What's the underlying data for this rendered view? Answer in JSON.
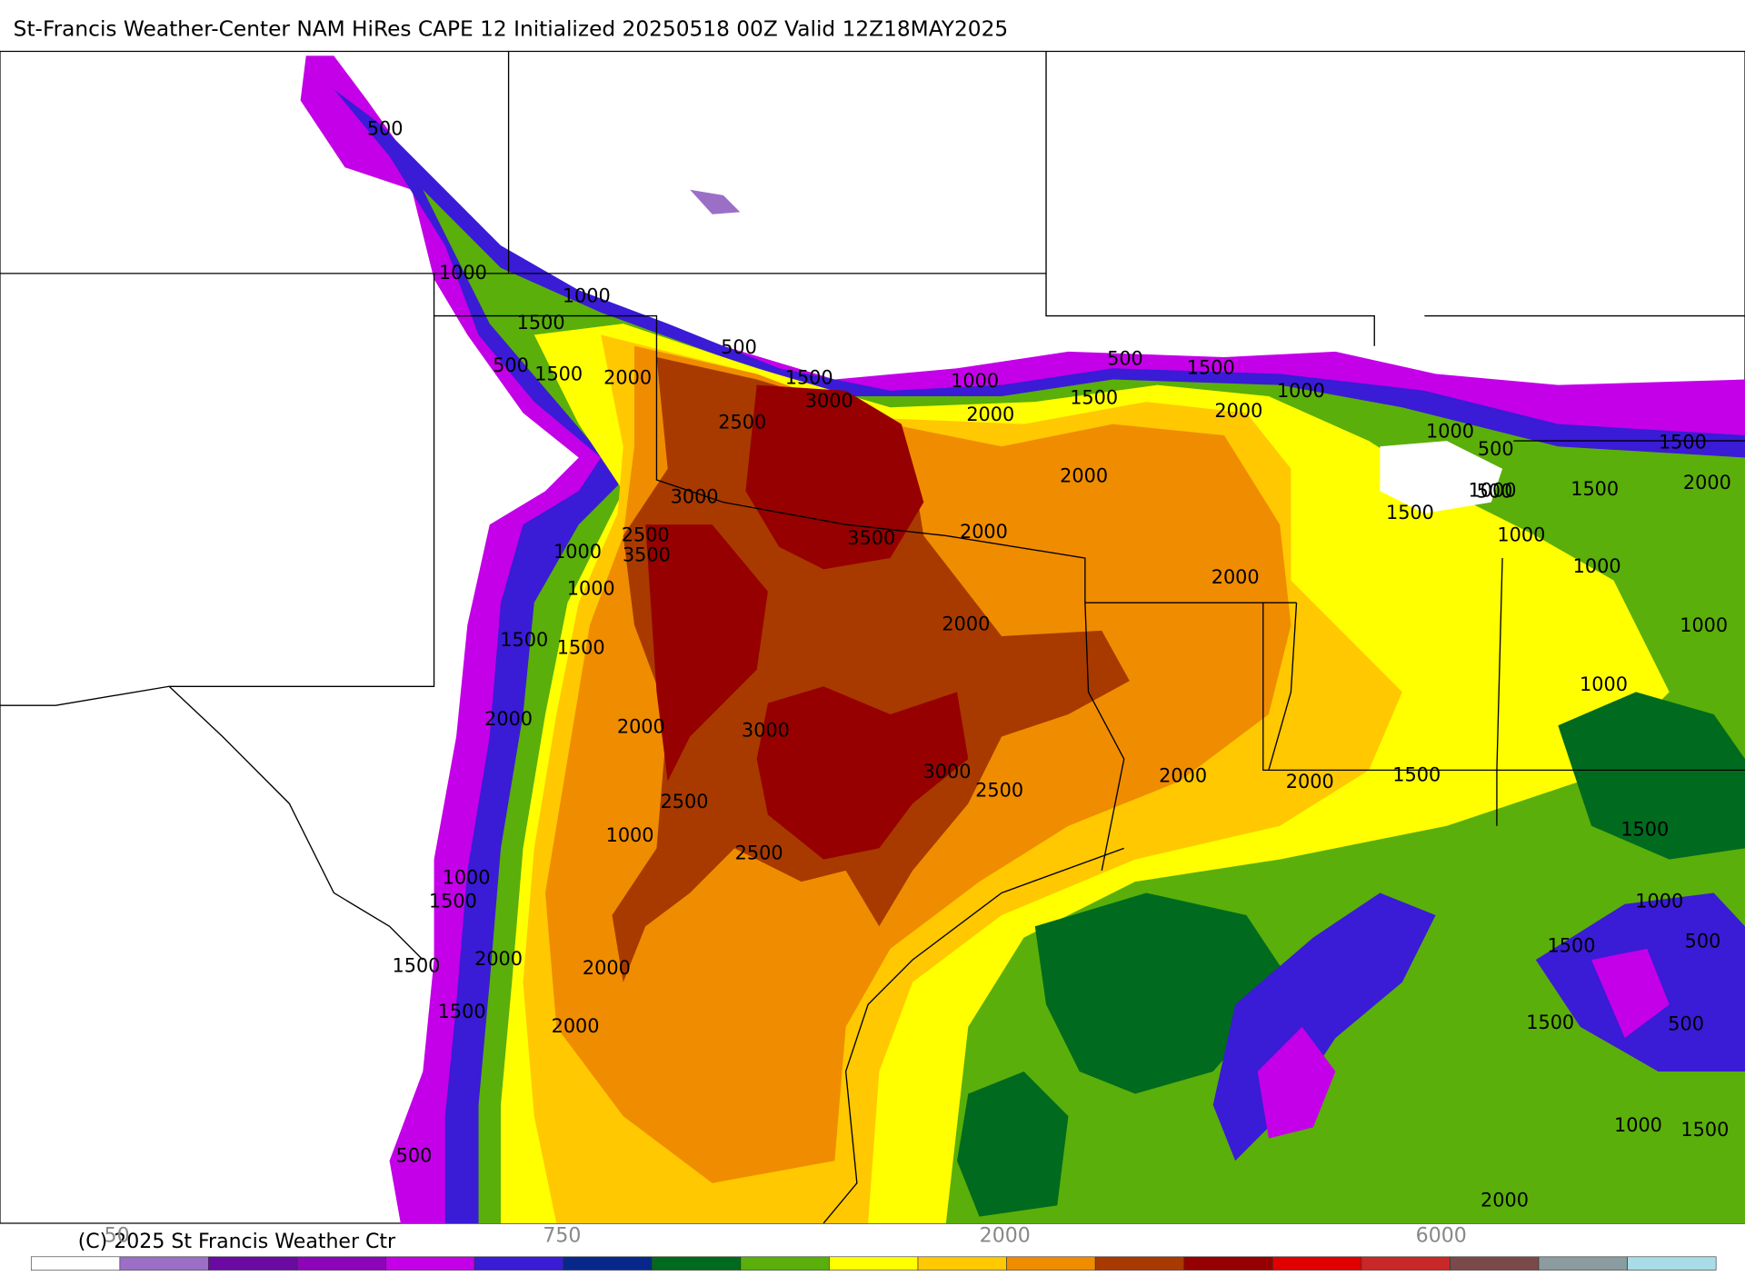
{
  "header": {
    "title": "St-Francis Weather-Center NAM HiRes CAPE  12 Initialized 20250518 00Z Valid 12Z18MAY2025"
  },
  "footer": {
    "copyright": "(C) 2025 St Francis Weather Ctr"
  },
  "colorbar": {
    "colors": [
      "#ffffff",
      "#9b6fc6",
      "#6a0aa3",
      "#8d05b8",
      "#c300e8",
      "#3a1bd6",
      "#07288a",
      "#006b1e",
      "#5aaf0a",
      "#ffff00",
      "#ffc800",
      "#f08c00",
      "#a83a00",
      "#960000",
      "#e00000",
      "#c82828",
      "#7a4a4a",
      "#8a9ca0",
      "#a8dce6"
    ],
    "labels": [
      "50",
      "750",
      "2000",
      "6000"
    ]
  },
  "map": {
    "contour_labels": [
      "500",
      "1000",
      "1000",
      "1500",
      "500",
      "1500",
      "2000",
      "500",
      "1500",
      "3000",
      "2500",
      "3000",
      "3500",
      "2500",
      "3500",
      "1000",
      "1000",
      "1500",
      "1500",
      "2000",
      "2000",
      "3000",
      "3000",
      "2500",
      "2500",
      "2500",
      "1000",
      "2000",
      "2000",
      "2000",
      "2000",
      "500",
      "1500",
      "1000",
      "2000",
      "2000",
      "1500",
      "2000",
      "2000",
      "2000",
      "2000",
      "1000",
      "1500",
      "2000",
      "1500",
      "1500",
      "2000",
      "1000",
      "1000",
      "1500",
      "1500",
      "1500",
      "1000",
      "1000",
      "1000",
      "500",
      "1000",
      "1000",
      "1500",
      "500",
      "1500",
      "500",
      "1500",
      "1000",
      "1500",
      "2000",
      "500",
      "1000",
      "1500",
      "500"
    ]
  }
}
